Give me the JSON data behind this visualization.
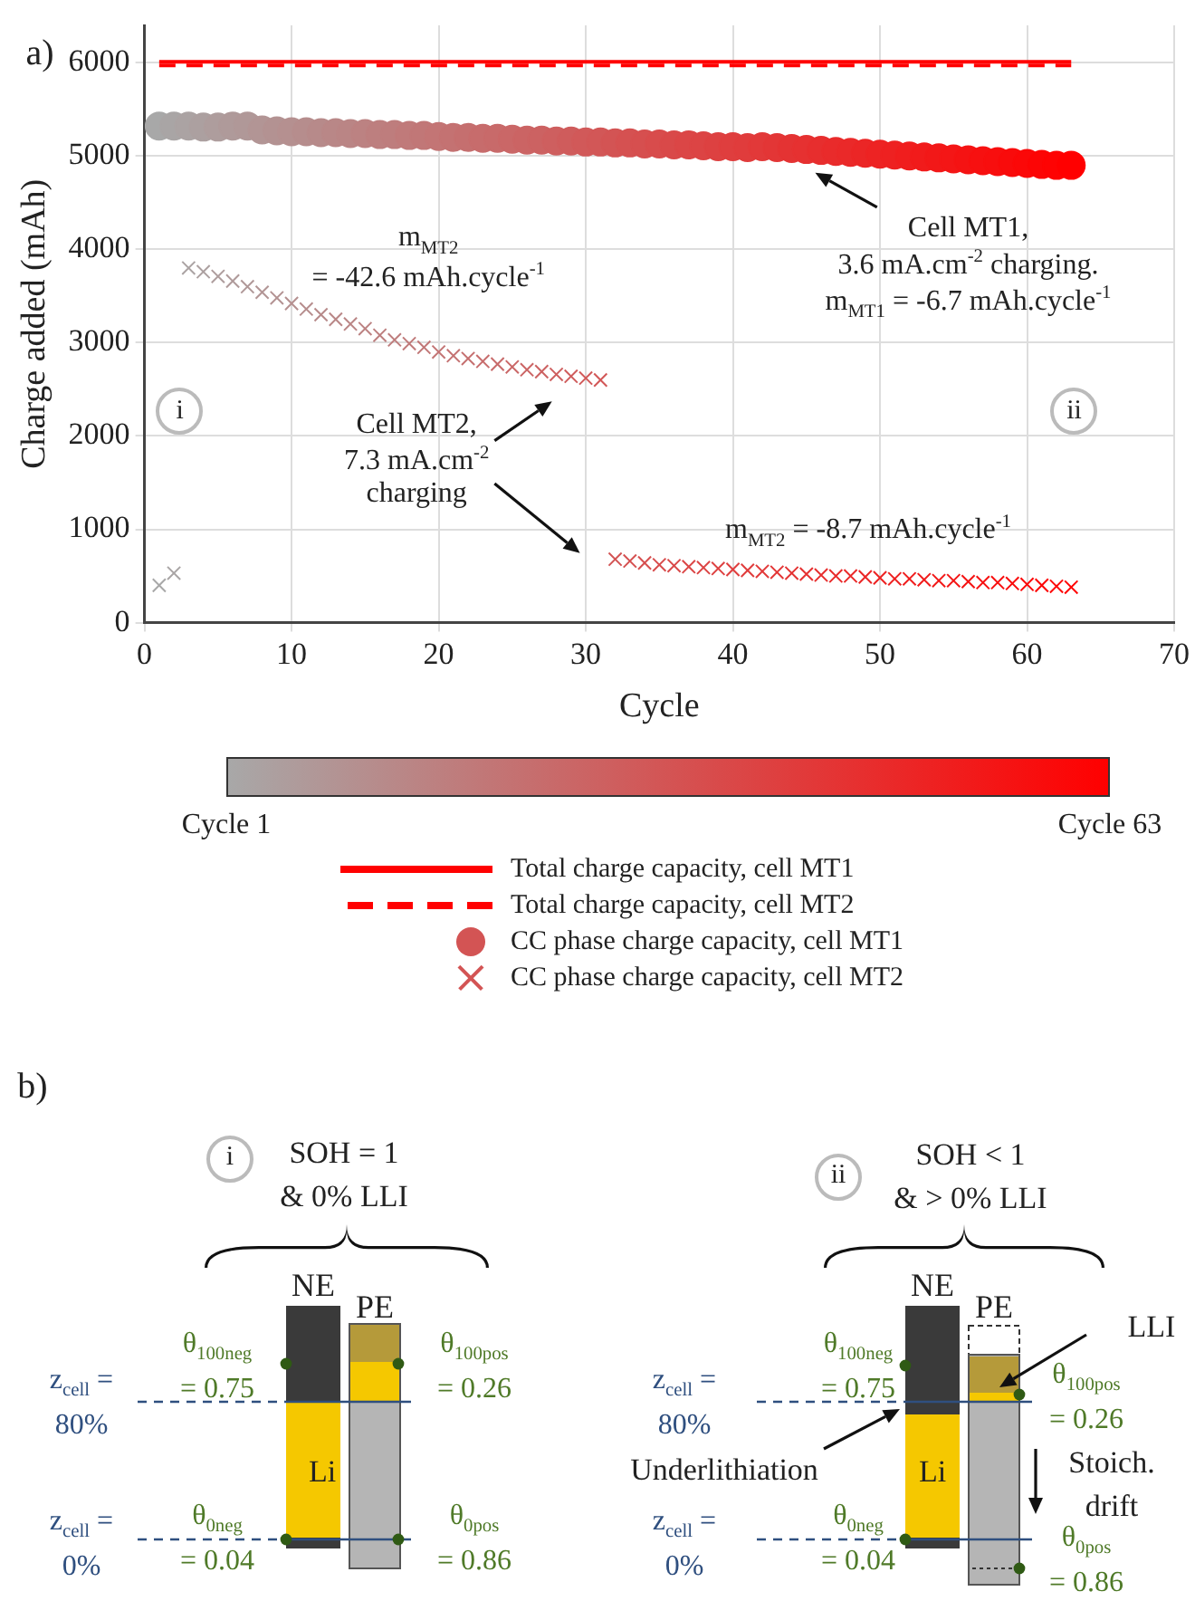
{
  "chart_data": [
    {
      "type": "scatter",
      "xlabel": "Cycle",
      "ylabel": "Charge added (mAh)",
      "xlim": [
        0,
        70
      ],
      "xticks": [
        0,
        10,
        20,
        30,
        40,
        50,
        60,
        70
      ],
      "ylim": [
        0,
        6400
      ],
      "yticks": [
        0,
        1000,
        2000,
        3000,
        4000,
        5000,
        6000
      ],
      "grid": true,
      "legend": "bottom",
      "clim": [
        1,
        63
      ],
      "cticks": [
        {
          "value": 1,
          "label": "Cycle 1"
        },
        {
          "value": 63,
          "label": "Cycle 63"
        }
      ],
      "annotations": [
        "a)",
        "m$_{MT2}$\n= -42.6 mAh.cycle$^{-1}$",
        "Cell MT1,\n3.6 mA.cm$^{-2}$ charging.\nm$_{MT1}$ = -6.7 mAh.cycle$^{-1}$",
        "Cell MT2,\n7.3 mA.cm$^{-2}$\ncharging",
        "m$_{MT2}$ = -8.7 mAh.cycle$^{-1}$",
        "i",
        "ii"
      ],
      "series": [
        {
          "name": "Total charge capacity, cell MT1",
          "type": "line",
          "color": "#ff0000",
          "line_style": "solid",
          "marker": "none",
          "x": [
            1,
            63
          ],
          "values": [
            6010,
            6010
          ]
        },
        {
          "name": "Total charge capacity, cell MT2",
          "type": "line",
          "color": "#ff0000",
          "line_style": "dashed",
          "marker": "none",
          "x": [
            1,
            63
          ],
          "values": [
            5970,
            5970
          ]
        },
        {
          "name": "CC phase charge capacity, cell MT1",
          "type": "scatter",
          "marker": "circle",
          "x": [
            1,
            2,
            3,
            4,
            5,
            6,
            7,
            8,
            9,
            10,
            11,
            12,
            13,
            14,
            15,
            16,
            17,
            18,
            19,
            20,
            21,
            22,
            23,
            24,
            25,
            26,
            27,
            28,
            29,
            30,
            31,
            32,
            33,
            34,
            35,
            36,
            37,
            38,
            39,
            40,
            41,
            42,
            43,
            44,
            45,
            46,
            47,
            48,
            49,
            50,
            51,
            52,
            53,
            54,
            55,
            56,
            57,
            58,
            59,
            60,
            61,
            62,
            63
          ],
          "values": [
            5320,
            5320,
            5320,
            5310,
            5310,
            5320,
            5320,
            5280,
            5270,
            5260,
            5260,
            5250,
            5250,
            5240,
            5240,
            5230,
            5230,
            5220,
            5220,
            5210,
            5200,
            5200,
            5190,
            5190,
            5180,
            5170,
            5170,
            5160,
            5160,
            5150,
            5150,
            5140,
            5140,
            5130,
            5130,
            5120,
            5120,
            5110,
            5100,
            5100,
            5090,
            5100,
            5090,
            5080,
            5070,
            5060,
            5050,
            5040,
            5030,
            5020,
            5010,
            5000,
            4990,
            4980,
            4970,
            4960,
            4950,
            4940,
            4930,
            4920,
            4910,
            4900,
            4900
          ],
          "colors": [
            "#a8a8a8",
            "#a9a5a5",
            "#aba3a3",
            "#aca0a0",
            "#ae9d9d",
            "#af9a9a",
            "#b09898",
            "#b29595",
            "#b39292",
            "#b59090",
            "#b68d8d",
            "#b78a8a",
            "#b98787",
            "#ba8585",
            "#bc8282",
            "#bd7f7f",
            "#be7d7d",
            "#c07a7a",
            "#c17777",
            "#c37575",
            "#c47272",
            "#c56f6f",
            "#c76c6c",
            "#c86a6a",
            "#ca6767",
            "#cb6464",
            "#cc6262",
            "#ce5f5f",
            "#cf5c5c",
            "#d15959",
            "#d25757",
            "#d35454",
            "#d55151",
            "#d64f4f",
            "#d84c4c",
            "#d94949",
            "#db4646",
            "#dc4444",
            "#dd4141",
            "#df3e3e",
            "#e03c3c",
            "#e23939",
            "#e33636",
            "#e43333",
            "#e63131",
            "#e72e2e",
            "#e92b2b",
            "#ea2929",
            "#eb2626",
            "#ed2323",
            "#ee2121",
            "#f01e1e",
            "#f11b1b",
            "#f21818",
            "#f41616",
            "#f51313",
            "#f71010",
            "#f80e0e",
            "#f90b0b",
            "#fb0808",
            "#fc0505",
            "#fe0303",
            "#ff0000"
          ]
        },
        {
          "name": "CC phase charge capacity, cell MT2",
          "type": "scatter",
          "marker": "cross",
          "x": [
            1,
            2,
            3,
            4,
            5,
            6,
            7,
            8,
            9,
            10,
            11,
            12,
            13,
            14,
            15,
            16,
            17,
            18,
            19,
            20,
            21,
            22,
            23,
            24,
            25,
            26,
            27,
            28,
            29,
            30,
            31,
            32,
            33,
            34,
            35,
            36,
            37,
            38,
            39,
            40,
            41,
            42,
            43,
            44,
            45,
            46,
            47,
            48,
            49,
            50,
            51,
            52,
            53,
            54,
            55,
            56,
            57,
            58,
            59,
            60,
            61,
            62,
            63
          ],
          "values": [
            400,
            530,
            3800,
            3760,
            3710,
            3660,
            3600,
            3540,
            3480,
            3420,
            3360,
            3300,
            3250,
            3200,
            3150,
            3080,
            3030,
            2990,
            2950,
            2900,
            2860,
            2830,
            2800,
            2770,
            2740,
            2710,
            2690,
            2660,
            2640,
            2620,
            2600,
            680,
            660,
            640,
            620,
            610,
            600,
            590,
            580,
            570,
            560,
            550,
            540,
            530,
            520,
            510,
            500,
            500,
            490,
            480,
            470,
            470,
            460,
            450,
            450,
            440,
            430,
            430,
            420,
            410,
            400,
            390,
            380
          ],
          "colors": [
            "#a8a8a8",
            "#a9a5a5",
            "#aba3a3",
            "#aca0a0",
            "#ae9d9d",
            "#af9a9a",
            "#b09898",
            "#b29595",
            "#b39292",
            "#b59090",
            "#b68d8d",
            "#b78a8a",
            "#b98787",
            "#ba8585",
            "#bc8282",
            "#bd7f7f",
            "#be7d7d",
            "#c07a7a",
            "#c17777",
            "#c37575",
            "#c47272",
            "#c56f6f",
            "#c76c6c",
            "#c86a6a",
            "#ca6767",
            "#cb6464",
            "#cc6262",
            "#ce5f5f",
            "#cf5c5c",
            "#d15959",
            "#d25757",
            "#d35454",
            "#d55151",
            "#d64f4f",
            "#d84c4c",
            "#d94949",
            "#db4646",
            "#dc4444",
            "#dd4141",
            "#df3e3e",
            "#e03c3c",
            "#e23939",
            "#e33636",
            "#e43333",
            "#e63131",
            "#e72e2e",
            "#e92b2b",
            "#ea2929",
            "#eb2626",
            "#ed2323",
            "#ee2121",
            "#f01e1e",
            "#f11b1b",
            "#f21818",
            "#f41616",
            "#f51313",
            "#f71010",
            "#f80e0e",
            "#f90b0b",
            "#fb0808",
            "#fc0505",
            "#fe0303",
            "#ff0000"
          ]
        }
      ]
    },
    {
      "type": "other",
      "annotations": [
        "b)",
        "i",
        "SOH = 1\n& 0% LLI",
        "NE",
        "PE",
        "θ$_{100neg}$\n= 0.75",
        "θ$_{100pos}$\n= 0.26",
        "z$_{cell}$ =\n80%",
        "Li",
        "z$_{cell}$ =\n0%",
        "θ$_{0neg}$\n= 0.04",
        "θ$_{0pos}$\n= 0.86",
        "ii",
        "SOH < 1\n& > 0% LLI",
        "NE",
        "PE",
        "LLI",
        "θ$_{100neg}$\n= 0.75",
        "θ$_{100pos}$\n= 0.26",
        "z$_{cell}$ =\n80%",
        "Underlithiation",
        "Li",
        "Stoich.\ndrift",
        "z$_{cell}$ =\n0%",
        "θ$_{0neg}$\n= 0.04",
        "θ$_{0pos}$\n= 0.86"
      ]
    }
  ]
}
